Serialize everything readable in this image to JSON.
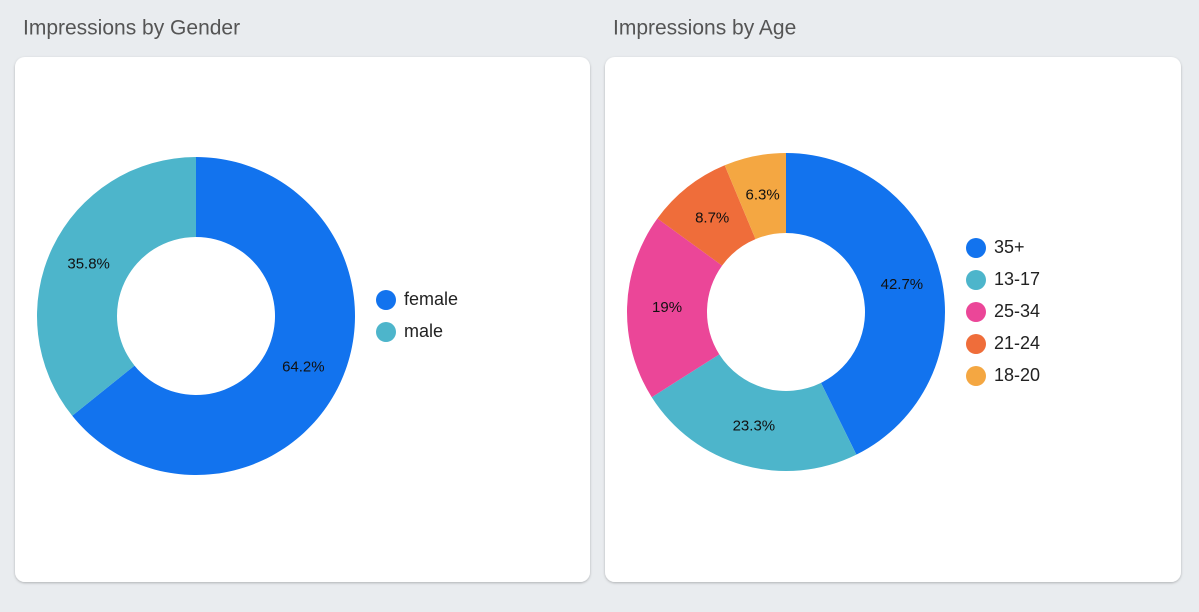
{
  "chart_data": [
    {
      "type": "donut",
      "title": "Impressions by Gender",
      "categories": [
        "female",
        "male"
      ],
      "values": [
        64.2,
        35.8
      ],
      "value_labels": [
        "64.2%",
        "35.8%"
      ],
      "colors": [
        "#1273ee",
        "#4db5cb"
      ]
    },
    {
      "type": "donut",
      "title": "Impressions by Age",
      "categories": [
        "35+",
        "13-17",
        "25-34",
        "21-24",
        "18-20"
      ],
      "values": [
        42.7,
        23.3,
        19,
        8.7,
        6.3
      ],
      "value_labels": [
        "42.7%",
        "23.3%",
        "19%",
        "8.7%",
        "6.3%"
      ],
      "colors": [
        "#1273ee",
        "#4db5cb",
        "#eb4698",
        "#ef6d3a",
        "#f4a742"
      ]
    }
  ]
}
